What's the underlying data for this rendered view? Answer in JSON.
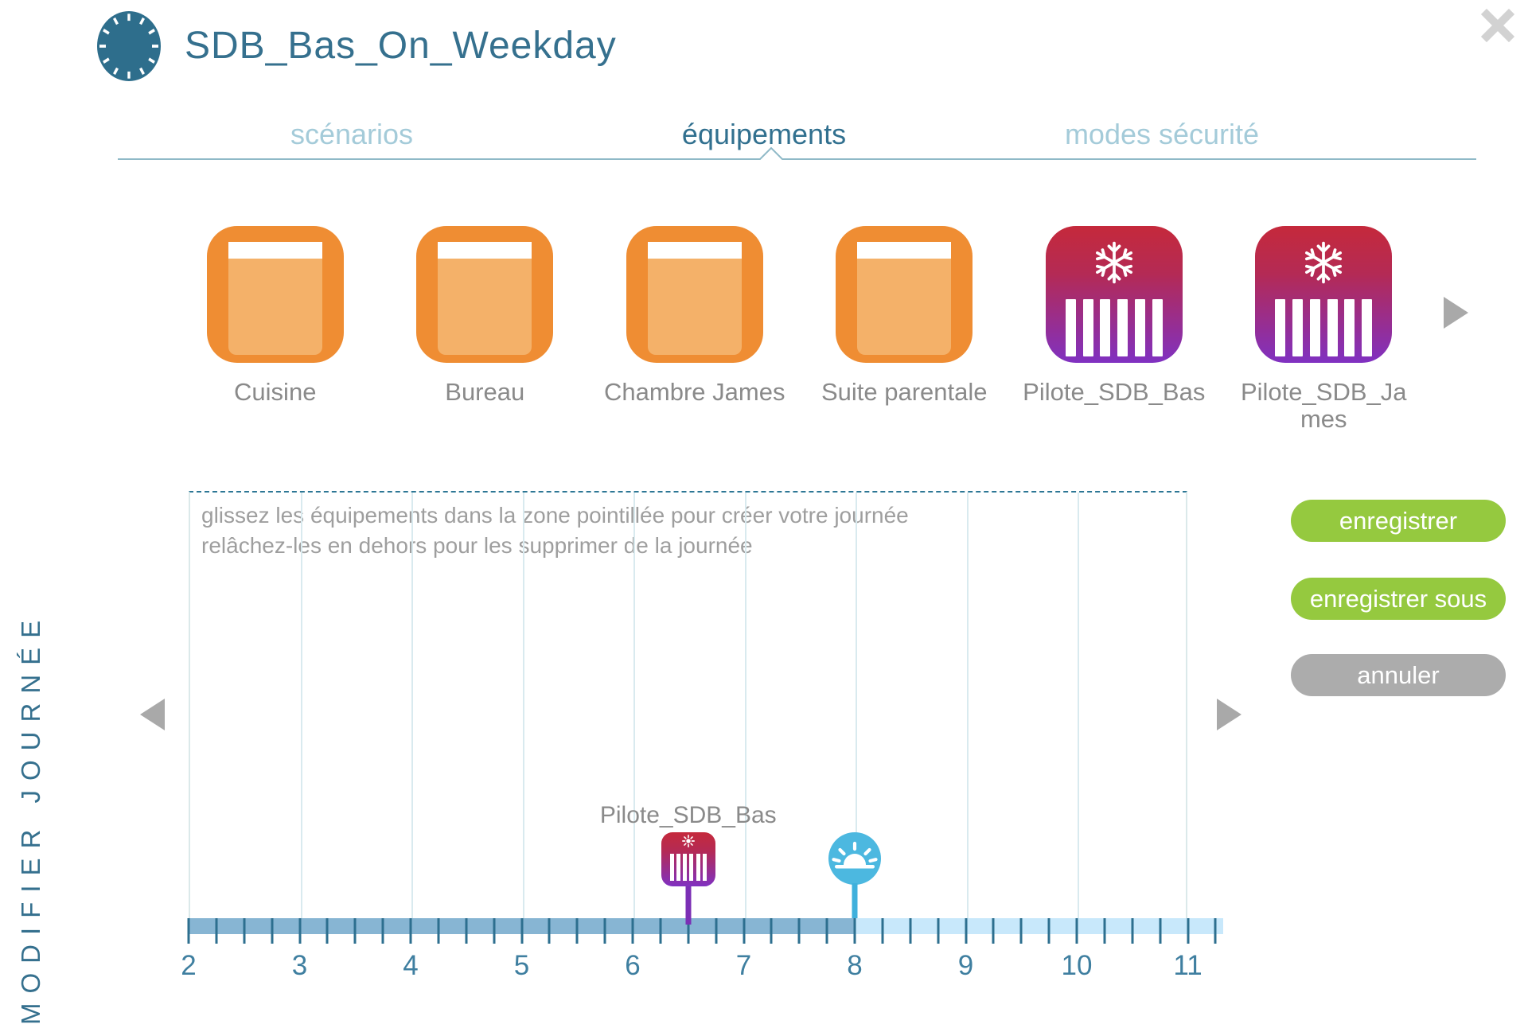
{
  "header": {
    "title": "SDB_Bas_On_Weekday",
    "icon": "clock-dial-icon"
  },
  "tabs": [
    {
      "label": "scénarios",
      "active": false
    },
    {
      "label": "équipements",
      "active": true
    },
    {
      "label": "modes sécurité",
      "active": false
    }
  ],
  "equipment": {
    "items": [
      {
        "name": "Cuisine",
        "type": "roller-shutter"
      },
      {
        "name": "Bureau",
        "type": "roller-shutter"
      },
      {
        "name": "Chambre James",
        "type": "roller-shutter"
      },
      {
        "name": "Suite parentale",
        "type": "roller-shutter"
      },
      {
        "name": "Pilote_SDB_Bas",
        "type": "heater-frost"
      },
      {
        "name": "Pilote_SDB_James",
        "type": "heater-frost"
      }
    ]
  },
  "dropzone": {
    "hint_line1": "glissez les équipements dans la zone pointillée pour créer votre journée",
    "hint_line2": "relâchez-les en dehors pour les supprimer de la journée"
  },
  "timeline": {
    "hour_start": 2,
    "hour_end": 11,
    "hours": [
      2,
      3,
      4,
      5,
      6,
      7,
      8,
      9,
      10,
      11
    ],
    "ticks_per_hour": 4,
    "filled_until_hour": 8,
    "events": [
      {
        "label": "Pilote_SDB_Bas",
        "hour": 6.5,
        "type": "heater-comfort"
      },
      {
        "label": "",
        "hour": 8,
        "type": "sunrise"
      }
    ]
  },
  "actions": {
    "save": "enregistrer",
    "save_as": "enregistrer sous",
    "cancel": "annuler"
  },
  "sidebar": {
    "label": "MODIFIER JOURNÉE"
  },
  "colors": {
    "accent_teal": "#35708e",
    "tab_inactive": "#a4cbd9",
    "orange_border": "#ef8d33",
    "orange_fill": "#f4b169",
    "heater_red": "#c5293b",
    "heater_purple": "#8031c1",
    "green_button": "#95c93f",
    "gray_button": "#acacac",
    "bar_past": "#87b5d3",
    "bar_future": "#c8e8fb",
    "stem_purple": "#7b2fb5",
    "sunrise_blue": "#4cb8e0",
    "label_gray": "#8a8a8a"
  }
}
